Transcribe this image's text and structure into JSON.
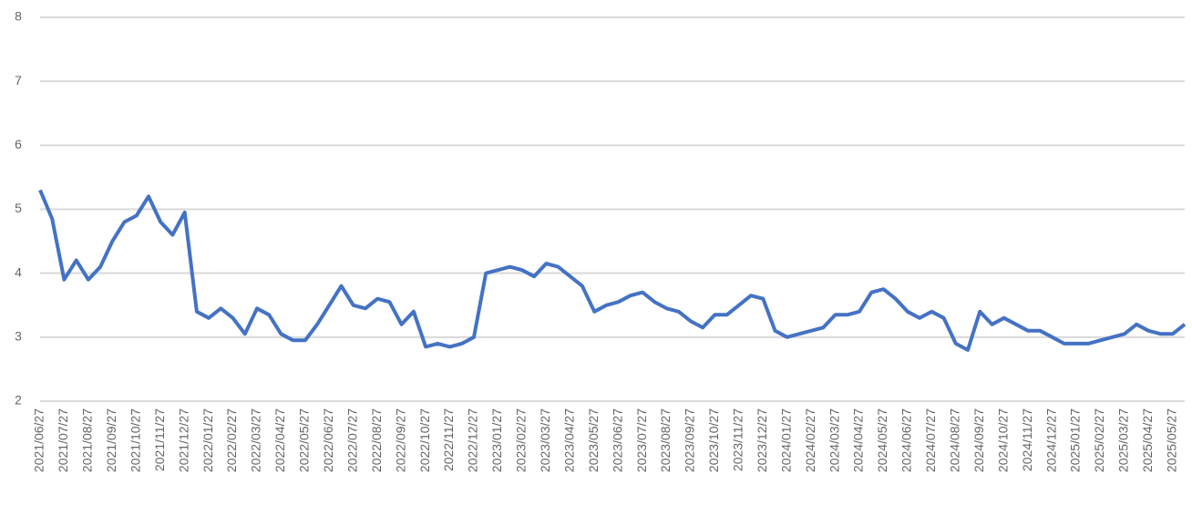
{
  "chart_data": {
    "type": "line",
    "categories": [
      "2021/06/27",
      null,
      "2021/07/27",
      null,
      "2021/08/27",
      null,
      "2021/09/27",
      null,
      "2021/10/27",
      null,
      "2021/11/27",
      null,
      "2021/12/27",
      null,
      "2022/01/27",
      null,
      "2022/02/27",
      null,
      "2022/03/27",
      null,
      "2022/04/27",
      null,
      "2022/05/27",
      null,
      "2022/06/27",
      null,
      "2022/07/27",
      null,
      "2022/08/27",
      null,
      "2022/09/27",
      null,
      "2022/10/27",
      null,
      "2022/11/27",
      null,
      "2022/12/27",
      null,
      "2023/01/27",
      null,
      "2023/02/27",
      null,
      "2023/03/27",
      null,
      "2023/04/27",
      null,
      "2023/05/27",
      null,
      "2023/06/27",
      null,
      "2023/07/27",
      null,
      "2023/08/27",
      null,
      "2023/09/27",
      null,
      "2023/10/27",
      null,
      "2023/11/27",
      null,
      "2023/12/27",
      null,
      "2024/01/27",
      null,
      "2024/02/27",
      null,
      "2024/03/27",
      null,
      "2024/04/27",
      null,
      "2024/05/27",
      null,
      "2024/06/27",
      null,
      "2024/07/27",
      null,
      "2024/08/27",
      null,
      "2024/09/27",
      null,
      "2024/10/27",
      null,
      "2024/11/27",
      null,
      "2024/12/27",
      null,
      "2025/01/27",
      null,
      "2025/02/27",
      null,
      "2025/03/27",
      null,
      "2025/04/27",
      null,
      "2025/05/27",
      null
    ],
    "values": [
      5.3,
      4.85,
      3.9,
      4.2,
      3.9,
      4.1,
      4.5,
      4.8,
      4.9,
      5.2,
      4.8,
      4.6,
      4.95,
      3.4,
      3.3,
      3.45,
      3.3,
      3.05,
      3.45,
      3.35,
      3.05,
      2.95,
      2.95,
      3.2,
      3.5,
      3.8,
      3.5,
      3.45,
      3.6,
      3.55,
      3.2,
      3.4,
      2.85,
      2.9,
      2.85,
      2.9,
      3.0,
      4.0,
      4.05,
      4.1,
      4.05,
      3.95,
      4.15,
      4.1,
      3.95,
      3.8,
      3.4,
      3.5,
      3.55,
      3.65,
      3.7,
      3.55,
      3.45,
      3.4,
      3.25,
      3.15,
      3.35,
      3.35,
      3.5,
      3.65,
      3.6,
      3.1,
      3.0,
      3.05,
      3.1,
      3.15,
      3.35,
      3.35,
      3.4,
      3.7,
      3.75,
      3.6,
      3.4,
      3.3,
      3.4,
      3.3,
      2.9,
      2.8,
      3.4,
      3.2,
      3.3,
      3.2,
      3.1,
      3.1,
      3.0,
      2.9,
      2.9,
      2.9,
      2.95,
      3.0,
      3.05,
      3.2,
      3.1,
      3.05,
      3.05,
      3.2
    ],
    "color": "#4472c4",
    "ylim": [
      2,
      8
    ],
    "yticks": [
      2,
      3,
      4,
      5,
      6,
      7,
      8
    ],
    "grid": true
  }
}
